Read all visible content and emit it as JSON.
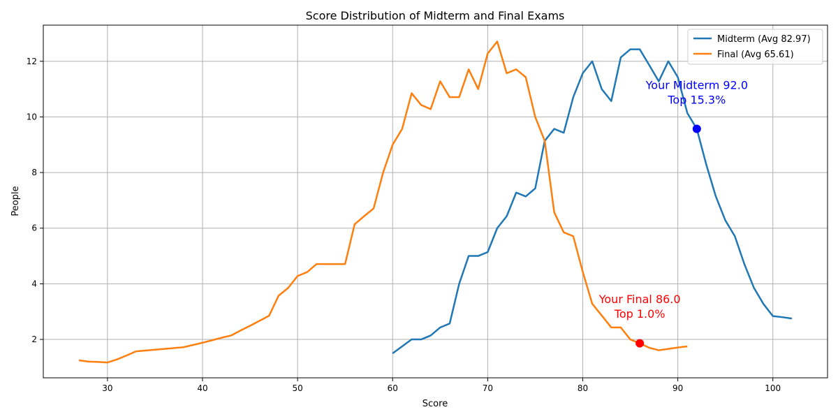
{
  "chart_data": {
    "type": "line",
    "title": "Score Distribution of Midterm and Final Exams",
    "xlabel": "Score",
    "ylabel": "People",
    "xlim": [
      23.25,
      105.75
    ],
    "ylim": [
      0.62,
      13.3
    ],
    "xticks": [
      30,
      40,
      50,
      60,
      70,
      80,
      90,
      100
    ],
    "yticks": [
      2,
      4,
      6,
      8,
      10,
      12
    ],
    "grid": true,
    "legend_position": "top-right",
    "series": [
      {
        "name": "Midterm (Avg 82.97)",
        "color": "#1f77b4",
        "x": [
          60,
          61,
          62,
          63,
          64,
          65,
          66,
          67,
          68,
          69,
          70,
          71,
          72,
          73,
          74,
          75,
          76,
          77,
          78,
          79,
          80,
          81,
          82,
          83,
          84,
          85,
          86,
          87,
          88,
          89,
          90,
          91,
          92,
          93,
          94,
          95,
          96,
          97,
          98,
          99,
          100,
          101,
          102
        ],
        "y": [
          1.5,
          1.75,
          2.0,
          2.0,
          2.14,
          2.43,
          2.57,
          4.0,
          5.0,
          5.0,
          5.14,
          6.0,
          6.43,
          7.28,
          7.14,
          7.43,
          9.14,
          9.57,
          9.43,
          10.71,
          11.57,
          12.0,
          11.0,
          10.57,
          12.14,
          12.43,
          12.43,
          11.86,
          11.28,
          12.0,
          11.43,
          10.14,
          9.57,
          8.28,
          7.14,
          6.28,
          5.71,
          4.71,
          3.86,
          3.28,
          2.84,
          2.8,
          2.75
        ]
      },
      {
        "name": "Final (Avg 65.61)",
        "color": "#ff7f0e",
        "x": [
          27,
          28,
          29,
          30,
          31,
          32,
          33,
          34,
          35,
          36,
          37,
          38,
          39,
          40,
          41,
          42,
          43,
          44,
          45,
          46,
          47,
          48,
          49,
          50,
          51,
          52,
          53,
          54,
          55,
          56,
          57,
          58,
          59,
          60,
          61,
          62,
          63,
          64,
          65,
          66,
          67,
          68,
          69,
          70,
          71,
          72,
          73,
          74,
          75,
          76,
          77,
          78,
          79,
          80,
          81,
          82,
          83,
          84,
          85,
          86,
          87,
          88,
          89,
          90,
          91
        ],
        "y": [
          1.25,
          1.2,
          1.19,
          1.17,
          1.28,
          1.42,
          1.57,
          1.6,
          1.63,
          1.66,
          1.69,
          1.72,
          1.8,
          1.88,
          1.97,
          2.06,
          2.14,
          2.32,
          2.49,
          2.67,
          2.85,
          3.57,
          3.85,
          4.28,
          4.42,
          4.71,
          4.71,
          4.71,
          4.71,
          6.14,
          6.43,
          6.71,
          8.0,
          9.0,
          9.57,
          10.85,
          10.43,
          10.28,
          11.28,
          10.71,
          10.71,
          11.71,
          11.0,
          12.28,
          12.71,
          11.57,
          11.71,
          11.43,
          10.0,
          9.14,
          6.57,
          5.85,
          5.71,
          4.43,
          3.28,
          2.86,
          2.43,
          2.43,
          2.0,
          1.86,
          1.7,
          1.61,
          1.66,
          1.71,
          1.75
        ]
      }
    ],
    "annotations": [
      {
        "line1": "Your Midterm 92.0",
        "line2": "Top 15.3%",
        "x": 92.0,
        "y": 9.57,
        "text_x": 92.0,
        "text_y": 10.6,
        "color": "#0000ff"
      },
      {
        "line1": "Your Final 86.0",
        "line2": "Top 1.0%",
        "x": 86.0,
        "y": 1.86,
        "text_x": 86.0,
        "text_y": 2.9,
        "color": "#ff0000"
      }
    ]
  }
}
